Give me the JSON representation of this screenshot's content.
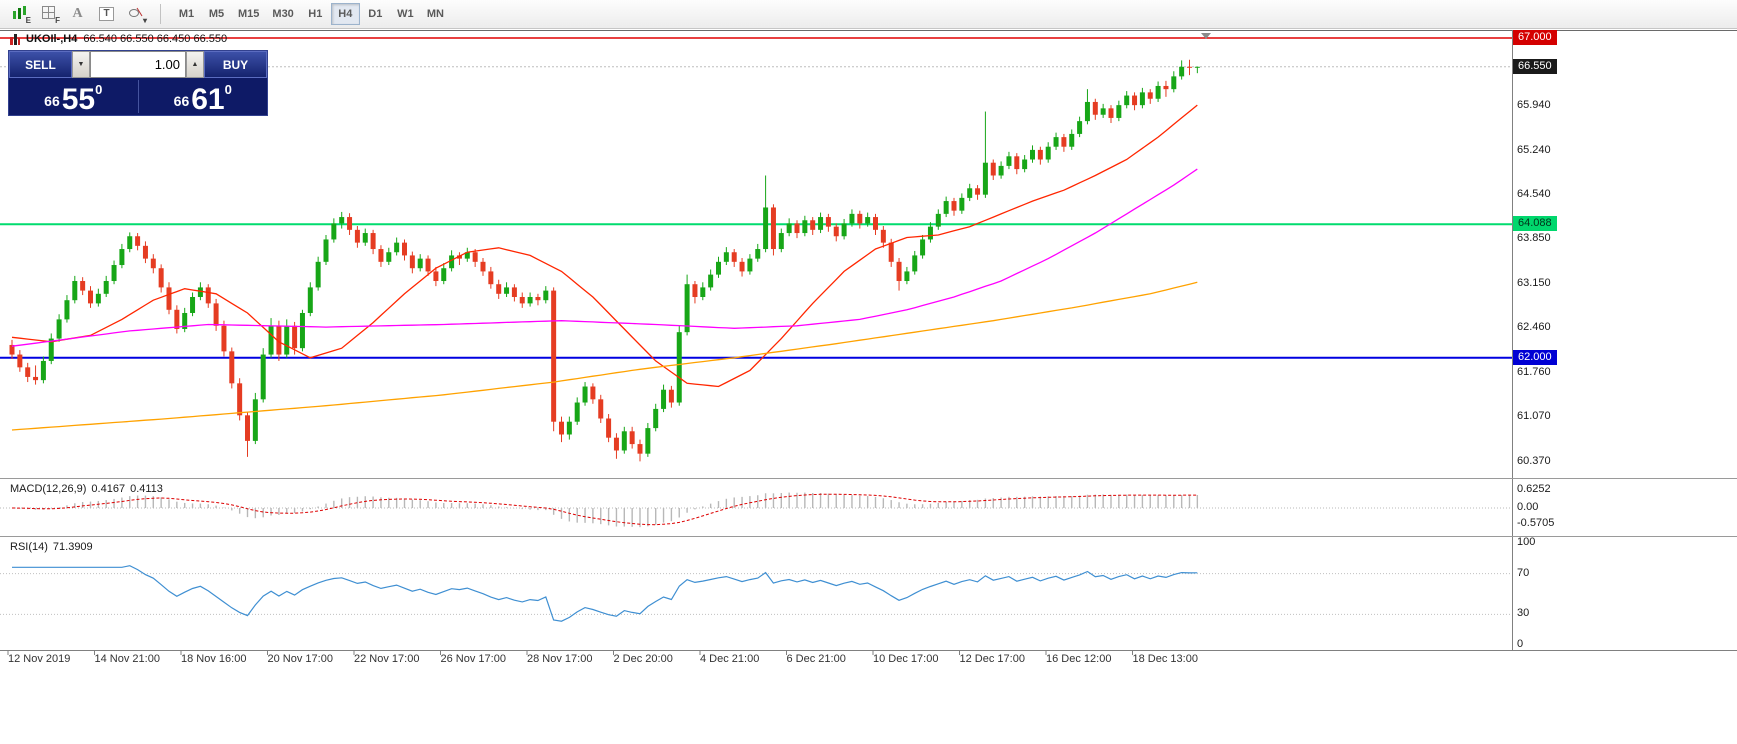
{
  "toolbar": {
    "tools": [
      {
        "id": "expert-chart",
        "icon": "chart",
        "label": "E"
      },
      {
        "id": "indicator-grid",
        "icon": "grid",
        "label": "F"
      },
      {
        "id": "font",
        "icon": "none",
        "label": "A"
      },
      {
        "id": "text-label",
        "icon": "box",
        "label": "T"
      },
      {
        "id": "draw-shapes",
        "icon": "shapes",
        "label": "▾"
      }
    ],
    "timeframes": [
      "M1",
      "M5",
      "M15",
      "M30",
      "H1",
      "H4",
      "D1",
      "W1",
      "MN"
    ],
    "active_timeframe": "H4"
  },
  "chart": {
    "symbol_period": "UKOIl-,H4",
    "ohlc_text": "66.540 66.550 66.450 66.550"
  },
  "trade_panel": {
    "sell_label": "SELL",
    "buy_label": "BUY",
    "volume": "1.00",
    "sell_price": {
      "prefix": "66",
      "big": "55",
      "sup": "0"
    },
    "buy_price": {
      "prefix": "66",
      "big": "61",
      "sup": "0"
    }
  },
  "indicators": {
    "macd": {
      "label": "MACD(12,26,9)",
      "value_main": "0.4167",
      "value_signal": "0.4113",
      "axis": [
        "0.6252",
        "0.00",
        "-0.5705"
      ],
      "params": {
        "fast": 12,
        "slow": 26,
        "signal": 9
      }
    },
    "rsi": {
      "label": "RSI(14)",
      "value": "71.3909",
      "axis": [
        "100",
        "70",
        "30",
        "0"
      ],
      "period": 14,
      "levels": [
        70,
        30
      ]
    }
  },
  "colors": {
    "bull": "#17a617",
    "bear": "#e53c22",
    "ma_fast": "#ff2600",
    "ma_mid": "#ff00ff",
    "ma_slow": "#ffa200",
    "rsi": "#3f8fd2",
    "macd_hist": "#b8b8b8",
    "macd_signal": "#dd0000",
    "hline_red": "#e00000",
    "hline_green": "#00dc6e",
    "hline_blue": "#0000e0"
  },
  "chart_data": {
    "type": "candlestick",
    "symbol": "UKOIl-",
    "timeframe": "H4",
    "y_axis_gridlines": [
      "65.940",
      "65.240",
      "64.540",
      "63.850",
      "63.150",
      "62.460",
      "61.760",
      "61.070",
      "60.370"
    ],
    "y_axis_tags": [
      {
        "text": "67.000",
        "bg": "#d40000",
        "fg": "#ffffff"
      },
      {
        "text": "66.550",
        "bg": "#1a1a1a",
        "fg": "#ffffff"
      },
      {
        "text": "64.088",
        "bg": "#00d76d",
        "fg": "#00331a"
      },
      {
        "text": "62.000",
        "bg": "#0000d4",
        "fg": "#ffffff"
      }
    ],
    "x_axis": [
      "12 Nov 2019",
      "14 Nov 21:00",
      "18 Nov 16:00",
      "20 Nov 17:00",
      "22 Nov 17:00",
      "26 Nov 17:00",
      "28 Nov 17:00",
      "2 Dec 20:00",
      "4 Dec 21:00",
      "6 Dec 21:00",
      "10 Dec 17:00",
      "12 Dec 17:00",
      "16 Dec 12:00",
      "18 Dec 13:00"
    ],
    "hlines": [
      {
        "price": 67.0,
        "color": "#e00000",
        "width": 1.5
      },
      {
        "price": 64.088,
        "color": "#00dc6e",
        "width": 2
      },
      {
        "price": 62.0,
        "color": "#0000e0",
        "width": 2
      }
    ],
    "bid": 66.55,
    "ohlc": [
      [
        62.2,
        62.28,
        61.98,
        62.05
      ],
      [
        62.05,
        62.12,
        61.78,
        61.85
      ],
      [
        61.85,
        61.92,
        61.62,
        61.7
      ],
      [
        61.7,
        61.88,
        61.58,
        61.65
      ],
      [
        61.65,
        62.02,
        61.6,
        61.95
      ],
      [
        61.95,
        62.38,
        61.9,
        62.3
      ],
      [
        62.3,
        62.68,
        62.25,
        62.6
      ],
      [
        62.6,
        62.98,
        62.55,
        62.9
      ],
      [
        62.9,
        63.28,
        62.85,
        63.2
      ],
      [
        63.2,
        63.26,
        62.98,
        63.05
      ],
      [
        63.05,
        63.12,
        62.78,
        62.85
      ],
      [
        62.85,
        63.08,
        62.8,
        63.0
      ],
      [
        63.0,
        63.28,
        62.95,
        63.2
      ],
      [
        63.2,
        63.52,
        63.15,
        63.45
      ],
      [
        63.45,
        63.78,
        63.4,
        63.7
      ],
      [
        63.7,
        63.96,
        63.65,
        63.9
      ],
      [
        63.9,
        63.95,
        63.68,
        63.75
      ],
      [
        63.75,
        63.82,
        63.48,
        63.55
      ],
      [
        63.55,
        63.62,
        63.32,
        63.4
      ],
      [
        63.4,
        63.46,
        63.02,
        63.1
      ],
      [
        63.1,
        63.18,
        62.68,
        62.75
      ],
      [
        62.75,
        62.82,
        62.38,
        62.45
      ],
      [
        62.45,
        62.78,
        62.4,
        62.7
      ],
      [
        62.7,
        63.02,
        62.65,
        62.95
      ],
      [
        62.95,
        63.18,
        62.9,
        63.1
      ],
      [
        63.1,
        63.15,
        62.78,
        62.85
      ],
      [
        62.85,
        62.92,
        62.42,
        62.5
      ],
      [
        62.5,
        62.58,
        62.02,
        62.1
      ],
      [
        62.1,
        62.16,
        61.52,
        61.6
      ],
      [
        61.6,
        61.68,
        61.02,
        61.1
      ],
      [
        61.1,
        61.16,
        60.45,
        60.7
      ],
      [
        60.7,
        61.45,
        60.65,
        61.35
      ],
      [
        61.35,
        62.15,
        61.3,
        62.05
      ],
      [
        62.05,
        62.62,
        62.0,
        62.5
      ],
      [
        62.5,
        62.58,
        61.95,
        62.05
      ],
      [
        62.05,
        62.6,
        62.0,
        62.5
      ],
      [
        62.5,
        62.56,
        62.05,
        62.15
      ],
      [
        62.15,
        62.75,
        62.1,
        62.7
      ],
      [
        62.7,
        63.18,
        62.65,
        63.1
      ],
      [
        63.1,
        63.58,
        63.05,
        63.5
      ],
      [
        63.5,
        63.92,
        63.45,
        63.85
      ],
      [
        63.85,
        64.18,
        63.8,
        64.1
      ],
      [
        64.1,
        64.28,
        64.02,
        64.2
      ],
      [
        64.2,
        64.26,
        63.92,
        64.0
      ],
      [
        64.0,
        64.06,
        63.72,
        63.8
      ],
      [
        63.8,
        64.02,
        63.75,
        63.95
      ],
      [
        63.95,
        64.0,
        63.62,
        63.7
      ],
      [
        63.7,
        63.76,
        63.42,
        63.5
      ],
      [
        63.5,
        63.72,
        63.45,
        63.65
      ],
      [
        63.65,
        63.88,
        63.6,
        63.8
      ],
      [
        63.8,
        63.85,
        63.52,
        63.6
      ],
      [
        63.6,
        63.66,
        63.32,
        63.4
      ],
      [
        63.4,
        63.62,
        63.35,
        63.55
      ],
      [
        63.55,
        63.6,
        63.28,
        63.35
      ],
      [
        63.35,
        63.42,
        63.12,
        63.2
      ],
      [
        63.2,
        63.48,
        63.15,
        63.4
      ],
      [
        63.4,
        63.68,
        63.35,
        63.6
      ],
      [
        63.6,
        63.65,
        63.45,
        63.55
      ],
      [
        63.55,
        63.72,
        63.5,
        63.65
      ],
      [
        63.65,
        63.7,
        63.42,
        63.5
      ],
      [
        63.5,
        63.56,
        63.28,
        63.35
      ],
      [
        63.35,
        63.42,
        63.08,
        63.15
      ],
      [
        63.15,
        63.22,
        62.92,
        63.0
      ],
      [
        63.0,
        63.18,
        62.95,
        63.1
      ],
      [
        63.1,
        63.15,
        62.88,
        62.95
      ],
      [
        62.95,
        63.02,
        62.78,
        62.85
      ],
      [
        62.85,
        63.02,
        62.8,
        62.95
      ],
      [
        62.95,
        63.0,
        62.82,
        62.9
      ],
      [
        62.9,
        63.12,
        62.85,
        63.05
      ],
      [
        63.05,
        63.1,
        60.85,
        61.0
      ],
      [
        61.0,
        61.08,
        60.68,
        60.8
      ],
      [
        60.8,
        61.08,
        60.72,
        61.0
      ],
      [
        61.0,
        61.38,
        60.95,
        61.3
      ],
      [
        61.3,
        61.62,
        61.25,
        61.55
      ],
      [
        61.55,
        61.6,
        61.28,
        61.35
      ],
      [
        61.35,
        61.42,
        60.98,
        61.05
      ],
      [
        61.05,
        61.12,
        60.68,
        60.75
      ],
      [
        60.75,
        60.82,
        60.42,
        60.55
      ],
      [
        60.55,
        60.92,
        60.5,
        60.85
      ],
      [
        60.85,
        60.92,
        60.58,
        60.65
      ],
      [
        60.65,
        60.72,
        60.38,
        60.5
      ],
      [
        60.5,
        60.98,
        60.45,
        60.9
      ],
      [
        60.9,
        61.28,
        60.85,
        61.2
      ],
      [
        61.2,
        61.58,
        61.15,
        61.5
      ],
      [
        61.5,
        61.56,
        61.22,
        61.3
      ],
      [
        61.3,
        62.5,
        61.25,
        62.4
      ],
      [
        62.4,
        63.3,
        62.35,
        63.15
      ],
      [
        63.15,
        63.2,
        62.85,
        62.95
      ],
      [
        62.95,
        63.18,
        62.9,
        63.1
      ],
      [
        63.1,
        63.38,
        63.05,
        63.3
      ],
      [
        63.3,
        63.58,
        63.25,
        63.5
      ],
      [
        63.5,
        63.73,
        63.45,
        63.65
      ],
      [
        63.65,
        63.7,
        63.42,
        63.5
      ],
      [
        63.5,
        63.56,
        63.27,
        63.35
      ],
      [
        63.35,
        63.62,
        63.3,
        63.55
      ],
      [
        63.55,
        63.78,
        63.5,
        63.7
      ],
      [
        63.7,
        64.85,
        63.65,
        64.35
      ],
      [
        64.35,
        64.4,
        63.6,
        63.7
      ],
      [
        63.7,
        64.02,
        63.65,
        63.95
      ],
      [
        63.95,
        64.18,
        63.9,
        64.1
      ],
      [
        64.1,
        64.15,
        63.87,
        63.95
      ],
      [
        63.95,
        64.22,
        63.9,
        64.15
      ],
      [
        64.15,
        64.2,
        63.92,
        64.0
      ],
      [
        64.0,
        64.27,
        63.95,
        64.2
      ],
      [
        64.2,
        64.25,
        63.97,
        64.05
      ],
      [
        64.05,
        64.1,
        63.82,
        63.9
      ],
      [
        63.9,
        64.17,
        63.85,
        64.1
      ],
      [
        64.1,
        64.32,
        64.05,
        64.25
      ],
      [
        64.25,
        64.3,
        64.02,
        64.1
      ],
      [
        64.1,
        64.27,
        64.05,
        64.2
      ],
      [
        64.2,
        64.25,
        63.92,
        64.0
      ],
      [
        64.0,
        64.06,
        63.72,
        63.8
      ],
      [
        63.8,
        63.86,
        63.42,
        63.5
      ],
      [
        63.5,
        63.56,
        63.05,
        63.2
      ],
      [
        63.2,
        63.42,
        63.15,
        63.35
      ],
      [
        63.35,
        63.67,
        63.3,
        63.6
      ],
      [
        63.6,
        63.92,
        63.55,
        63.85
      ],
      [
        63.85,
        64.12,
        63.8,
        64.05
      ],
      [
        64.05,
        64.32,
        64.0,
        64.25
      ],
      [
        64.25,
        64.52,
        64.2,
        64.45
      ],
      [
        64.45,
        64.5,
        64.22,
        64.3
      ],
      [
        64.3,
        64.57,
        64.25,
        64.5
      ],
      [
        64.5,
        64.72,
        64.45,
        64.65
      ],
      [
        64.65,
        64.7,
        64.47,
        64.55
      ],
      [
        64.55,
        65.85,
        64.5,
        65.05
      ],
      [
        65.05,
        65.1,
        64.78,
        64.85
      ],
      [
        64.85,
        65.07,
        64.8,
        65.0
      ],
      [
        65.0,
        65.22,
        64.95,
        65.15
      ],
      [
        65.15,
        65.2,
        64.87,
        64.95
      ],
      [
        64.95,
        65.17,
        64.9,
        65.1
      ],
      [
        65.1,
        65.32,
        65.05,
        65.25
      ],
      [
        65.25,
        65.3,
        65.02,
        65.1
      ],
      [
        65.1,
        65.37,
        65.05,
        65.3
      ],
      [
        65.3,
        65.52,
        65.25,
        65.45
      ],
      [
        65.45,
        65.5,
        65.22,
        65.3
      ],
      [
        65.3,
        65.57,
        65.25,
        65.5
      ],
      [
        65.5,
        65.77,
        65.45,
        65.7
      ],
      [
        65.7,
        66.2,
        65.65,
        66.0
      ],
      [
        66.0,
        66.05,
        65.72,
        65.8
      ],
      [
        65.8,
        65.97,
        65.75,
        65.9
      ],
      [
        65.9,
        65.95,
        65.67,
        65.75
      ],
      [
        65.75,
        66.02,
        65.7,
        65.95
      ],
      [
        65.95,
        66.17,
        65.9,
        66.1
      ],
      [
        66.1,
        66.15,
        65.87,
        65.95
      ],
      [
        65.95,
        66.22,
        65.9,
        66.15
      ],
      [
        66.15,
        66.2,
        65.97,
        66.05
      ],
      [
        66.05,
        66.32,
        66.0,
        66.25
      ],
      [
        66.25,
        66.33,
        66.08,
        66.2
      ],
      [
        66.2,
        66.48,
        66.15,
        66.4
      ],
      [
        66.4,
        66.65,
        66.35,
        66.55
      ],
      [
        66.55,
        66.66,
        66.42,
        66.54
      ],
      [
        66.54,
        66.55,
        66.45,
        66.55
      ]
    ],
    "overlays": [
      {
        "name": "ma-fast",
        "color": "#ff2600",
        "points": [
          [
            0,
            62.32
          ],
          [
            5,
            62.25
          ],
          [
            10,
            62.35
          ],
          [
            14,
            62.6
          ],
          [
            18,
            62.9
          ],
          [
            22,
            63.08
          ],
          [
            26,
            63.0
          ],
          [
            30,
            62.7
          ],
          [
            34,
            62.25
          ],
          [
            38,
            62.0
          ],
          [
            42,
            62.15
          ],
          [
            46,
            62.55
          ],
          [
            50,
            63.0
          ],
          [
            54,
            63.4
          ],
          [
            58,
            63.65
          ],
          [
            62,
            63.72
          ],
          [
            66,
            63.6
          ],
          [
            70,
            63.35
          ],
          [
            74,
            62.95
          ],
          [
            78,
            62.45
          ],
          [
            82,
            61.95
          ],
          [
            86,
            61.6
          ],
          [
            90,
            61.55
          ],
          [
            94,
            61.8
          ],
          [
            98,
            62.3
          ],
          [
            102,
            62.85
          ],
          [
            106,
            63.35
          ],
          [
            110,
            63.7
          ],
          [
            114,
            63.88
          ],
          [
            118,
            63.92
          ],
          [
            122,
            64.05
          ],
          [
            126,
            64.25
          ],
          [
            130,
            64.45
          ],
          [
            134,
            64.62
          ],
          [
            138,
            64.85
          ],
          [
            142,
            65.1
          ],
          [
            146,
            65.45
          ],
          [
            149,
            65.75
          ],
          [
            151,
            65.95
          ]
        ]
      },
      {
        "name": "ma-mid",
        "color": "#ff00ff",
        "points": [
          [
            0,
            62.18
          ],
          [
            15,
            62.42
          ],
          [
            25,
            62.52
          ],
          [
            40,
            62.48
          ],
          [
            55,
            62.52
          ],
          [
            70,
            62.58
          ],
          [
            82,
            62.52
          ],
          [
            92,
            62.46
          ],
          [
            100,
            62.5
          ],
          [
            108,
            62.6
          ],
          [
            114,
            62.75
          ],
          [
            120,
            62.95
          ],
          [
            126,
            63.2
          ],
          [
            132,
            63.55
          ],
          [
            138,
            63.95
          ],
          [
            144,
            64.4
          ],
          [
            148,
            64.7
          ],
          [
            151,
            64.95
          ]
        ]
      },
      {
        "name": "ma-slow",
        "color": "#ffa200",
        "points": [
          [
            0,
            60.87
          ],
          [
            20,
            61.05
          ],
          [
            40,
            61.25
          ],
          [
            55,
            61.42
          ],
          [
            69,
            61.62
          ],
          [
            80,
            61.82
          ],
          [
            92,
            62.0
          ],
          [
            105,
            62.22
          ],
          [
            115,
            62.4
          ],
          [
            125,
            62.58
          ],
          [
            135,
            62.78
          ],
          [
            145,
            63.0
          ],
          [
            151,
            63.18
          ]
        ]
      }
    ]
  }
}
